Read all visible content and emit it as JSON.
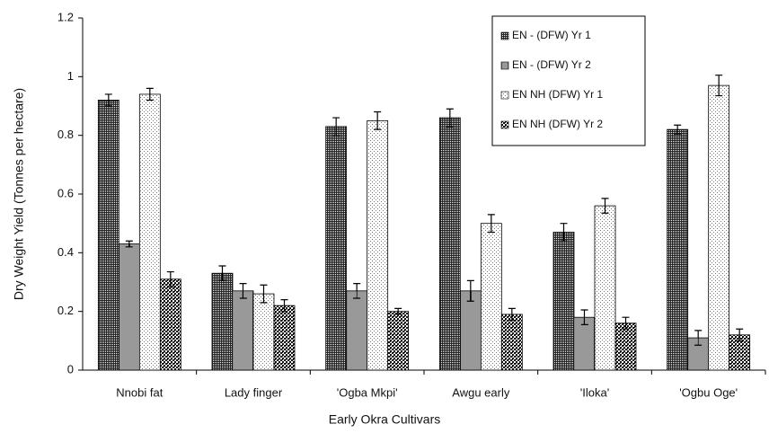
{
  "chart_data": {
    "type": "bar",
    "x_label": "Early Okra Cultivars",
    "y_label": "Dry Weight Yield (Tonnes per hectare)",
    "categories": [
      "Nnobi fat",
      "Lady finger",
      "'Ogba Mkpi'",
      "Awgu early",
      "'Iloka'",
      "'Ogbu Oge'"
    ],
    "series": [
      {
        "name": "EN - (DFW) Yr 1",
        "color": "#222222",
        "values": [
          0.92,
          0.33,
          0.83,
          0.86,
          0.47,
          0.82
        ],
        "errors": [
          0.02,
          0.025,
          0.03,
          0.03,
          0.03,
          0.015
        ]
      },
      {
        "name": "EN - (DFW) Yr 2",
        "color": "#333333",
        "values": [
          0.43,
          0.27,
          0.27,
          0.27,
          0.18,
          0.11
        ],
        "errors": [
          0.01,
          0.025,
          0.025,
          0.035,
          0.025,
          0.025
        ]
      },
      {
        "name": "EN NH (DFW) Yr 1",
        "color": "#777777",
        "values": [
          0.94,
          0.26,
          0.85,
          0.5,
          0.56,
          0.97
        ],
        "errors": [
          0.02,
          0.03,
          0.03,
          0.03,
          0.025,
          0.035
        ]
      },
      {
        "name": "EN NH (DFW) Yr 2",
        "color": "#111111",
        "values": [
          0.31,
          0.22,
          0.2,
          0.19,
          0.16,
          0.12
        ],
        "errors": [
          0.025,
          0.02,
          0.01,
          0.02,
          0.02,
          0.02
        ]
      }
    ],
    "ylim": [
      0,
      1.2
    ],
    "yticks": [
      0,
      0.2,
      0.4,
      0.6,
      0.8,
      1,
      1.2
    ],
    "legend": "top-right"
  }
}
